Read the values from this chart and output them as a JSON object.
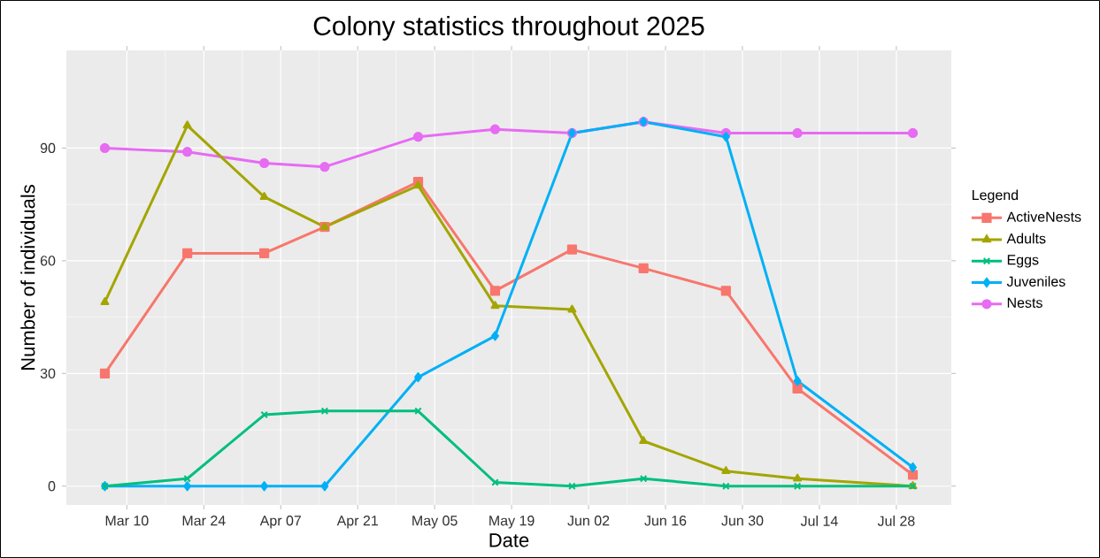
{
  "chart_data": {
    "type": "line",
    "title": "Colony statistics throughout 2025",
    "xlabel": "Date",
    "ylabel": "Number of individuals",
    "legend_title": "Legend",
    "legend": "right",
    "grid": true,
    "line_style": "solid",
    "x": [
      "2025-03-06",
      "2025-03-21",
      "2025-04-04",
      "2025-04-15",
      "2025-05-02",
      "2025-05-16",
      "2025-05-30",
      "2025-06-12",
      "2025-06-27",
      "2025-07-10",
      "2025-07-31"
    ],
    "xlim": [
      "2025-02-27",
      "2025-08-07"
    ],
    "xticks": [
      {
        "value": "2025-03-10",
        "label": "Mar 10"
      },
      {
        "value": "2025-03-24",
        "label": "Mar 24"
      },
      {
        "value": "2025-04-07",
        "label": "Apr 07"
      },
      {
        "value": "2025-04-21",
        "label": "Apr 21"
      },
      {
        "value": "2025-05-05",
        "label": "May 05"
      },
      {
        "value": "2025-05-19",
        "label": "May 19"
      },
      {
        "value": "2025-06-02",
        "label": "Jun 02"
      },
      {
        "value": "2025-06-16",
        "label": "Jun 16"
      },
      {
        "value": "2025-06-30",
        "label": "Jun 30"
      },
      {
        "value": "2025-07-14",
        "label": "Jul 14"
      },
      {
        "value": "2025-07-28",
        "label": "Jul 28"
      }
    ],
    "ylim": [
      -5,
      116
    ],
    "yticks": [
      0,
      30,
      60,
      90
    ],
    "series": [
      {
        "name": "ActiveNests",
        "color": "#f8766d",
        "marker": "square",
        "values": [
          30,
          62,
          62,
          69,
          81,
          52,
          63,
          58,
          52,
          26,
          3
        ]
      },
      {
        "name": "Adults",
        "color": "#a3a500",
        "marker": "triangle",
        "values": [
          49,
          96,
          77,
          69,
          80,
          48,
          47,
          12,
          4,
          2,
          0
        ]
      },
      {
        "name": "Eggs",
        "color": "#00bf7d",
        "marker": "cross",
        "values": [
          0,
          2,
          19,
          20,
          20,
          1,
          0,
          2,
          0,
          0,
          0
        ]
      },
      {
        "name": "Juveniles",
        "color": "#00b0f6",
        "marker": "diamond",
        "values": [
          0,
          0,
          0,
          0,
          29,
          40,
          94,
          97,
          93,
          28,
          5
        ]
      },
      {
        "name": "Nests",
        "color": "#e76bf3",
        "marker": "circle",
        "values": [
          90,
          89,
          86,
          85,
          93,
          95,
          94,
          97,
          94,
          94,
          94
        ]
      }
    ]
  }
}
